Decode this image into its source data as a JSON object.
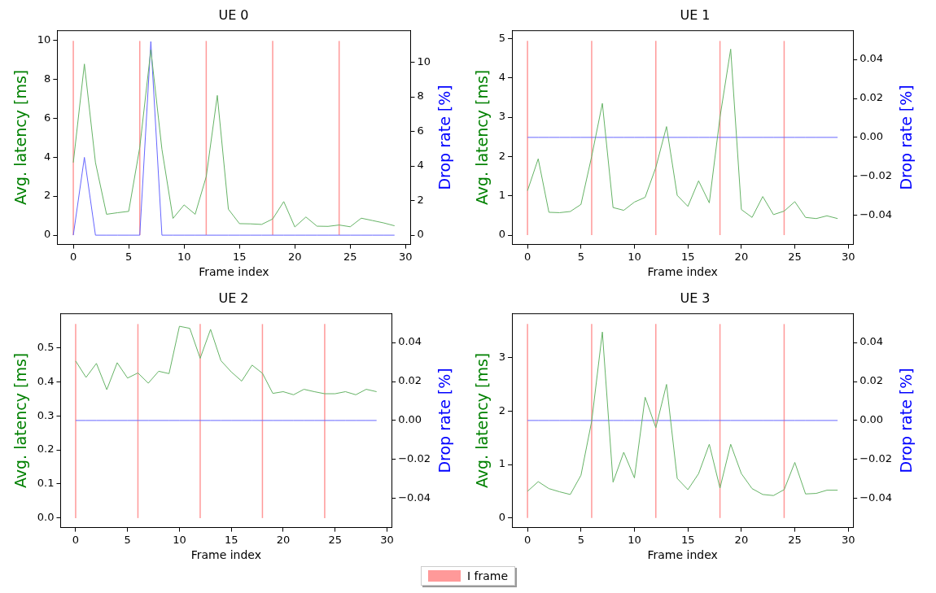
{
  "chart_data": [
    {
      "type": "line",
      "title": "UE 0",
      "xlabel": "Frame index",
      "ylabel": "Avg. latency [ms]",
      "y2label": "Drop rate [%]",
      "x": [
        0,
        1,
        2,
        3,
        4,
        5,
        6,
        7,
        8,
        9,
        10,
        11,
        12,
        13,
        14,
        15,
        16,
        17,
        18,
        19,
        20,
        21,
        22,
        23,
        24,
        25,
        26,
        27,
        28,
        29
      ],
      "xlim": [
        -1.45,
        30.45
      ],
      "xticks": [
        0,
        5,
        10,
        15,
        20,
        25,
        30
      ],
      "ylim": [
        -0.48,
        10.5
      ],
      "yticks": [
        0,
        2,
        4,
        6,
        8,
        10
      ],
      "y2lim": [
        -0.54,
        11.85
      ],
      "y2ticks": [
        0,
        2,
        4,
        6,
        8,
        10
      ],
      "grid": false,
      "legend": "bottom",
      "series": [
        {
          "color": "#66b366",
          "values": [
            3.72,
            8.77,
            3.72,
            1.07,
            1.15,
            1.22,
            4.5,
            9.5,
            4.4,
            0.86,
            1.55,
            1.07,
            3.0,
            7.16,
            1.33,
            0.59,
            0.58,
            0.55,
            0.83,
            1.72,
            0.42,
            0.93,
            0.46,
            0.45,
            0.52,
            0.43,
            0.87,
            0.75,
            0.63,
            0.48
          ]
        },
        {
          "color": "#6666ff",
          "axis": "y2",
          "values": [
            0,
            4.5,
            0,
            0,
            0,
            0,
            0,
            11.2,
            0,
            0,
            0,
            0,
            0,
            0,
            0,
            0,
            0,
            0,
            0,
            0,
            0,
            0,
            0,
            0,
            0,
            0,
            0,
            0,
            0,
            0
          ]
        }
      ],
      "ref_lines": [
        {
          "axis": "x",
          "value": 0,
          "label": "I frame",
          "color": "#ff9999"
        },
        {
          "axis": "x",
          "value": 6,
          "color": "#ff9999"
        },
        {
          "axis": "x",
          "value": 12,
          "color": "#ff9999"
        },
        {
          "axis": "x",
          "value": 18,
          "color": "#ff9999"
        },
        {
          "axis": "x",
          "value": 24,
          "color": "#ff9999"
        }
      ]
    },
    {
      "type": "line",
      "title": "UE 1",
      "xlabel": "Frame index",
      "ylabel": "Avg. latency [ms]",
      "y2label": "Drop rate [%]",
      "x": [
        0,
        1,
        2,
        3,
        4,
        5,
        6,
        7,
        8,
        9,
        10,
        11,
        12,
        13,
        14,
        15,
        16,
        17,
        18,
        19,
        20,
        21,
        22,
        23,
        24,
        25,
        26,
        27,
        28,
        29
      ],
      "xlim": [
        -1.45,
        30.45
      ],
      "xticks": [
        0,
        5,
        10,
        15,
        20,
        25,
        30
      ],
      "ylim": [
        -0.24,
        5.21
      ],
      "yticks": [
        0,
        1,
        2,
        3,
        4,
        5
      ],
      "y2lim": [
        -0.055,
        0.055
      ],
      "y2ticks": [
        {
          "value": -0.04,
          "label": "−0.04"
        },
        {
          "value": -0.02,
          "label": "−0.02"
        },
        {
          "value": 0,
          "label": "0.00"
        },
        0.02,
        0.04
      ],
      "grid": false,
      "series": [
        {
          "color": "#66b366",
          "values": [
            1.13,
            1.94,
            0.58,
            0.57,
            0.6,
            0.78,
            2.0,
            3.35,
            0.7,
            0.63,
            0.84,
            0.96,
            1.72,
            2.76,
            1.01,
            0.73,
            1.38,
            0.82,
            3.0,
            4.73,
            0.65,
            0.45,
            0.98,
            0.52,
            0.61,
            0.85,
            0.45,
            0.42,
            0.49,
            0.42
          ]
        },
        {
          "color": "#6666ff",
          "axis": "y2",
          "values": [
            0,
            0,
            0,
            0,
            0,
            0,
            0,
            0,
            0,
            0,
            0,
            0,
            0,
            0,
            0,
            0,
            0,
            0,
            0,
            0,
            0,
            0,
            0,
            0,
            0,
            0,
            0,
            0,
            0,
            0
          ]
        }
      ],
      "ref_lines": [
        {
          "axis": "x",
          "value": 0,
          "color": "#ff9999"
        },
        {
          "axis": "x",
          "value": 6,
          "color": "#ff9999"
        },
        {
          "axis": "x",
          "value": 12,
          "color": "#ff9999"
        },
        {
          "axis": "x",
          "value": 18,
          "color": "#ff9999"
        },
        {
          "axis": "x",
          "value": 24,
          "color": "#ff9999"
        }
      ]
    },
    {
      "type": "line",
      "title": "UE 2",
      "xlabel": "Frame index",
      "ylabel": "Avg. latency [ms]",
      "y2label": "Drop rate [%]",
      "x": [
        0,
        1,
        2,
        3,
        4,
        5,
        6,
        7,
        8,
        9,
        10,
        11,
        12,
        13,
        14,
        15,
        16,
        17,
        18,
        19,
        20,
        21,
        22,
        23,
        24,
        25,
        26,
        27,
        28,
        29
      ],
      "xlim": [
        -1.45,
        30.45
      ],
      "xticks": [
        0,
        5,
        10,
        15,
        20,
        25,
        30
      ],
      "ylim": [
        -0.028,
        0.601
      ],
      "yticks": [
        {
          "value": 0,
          "label": "0.0"
        },
        0.1,
        0.2,
        0.3,
        0.4,
        0.5
      ],
      "y2lim": [
        -0.055,
        0.055
      ],
      "y2ticks": [
        {
          "value": -0.04,
          "label": "−0.04"
        },
        {
          "value": -0.02,
          "label": "−0.02"
        },
        {
          "value": 0,
          "label": "0.00"
        },
        0.02,
        0.04
      ],
      "grid": false,
      "series": [
        {
          "color": "#66b366",
          "values": [
            0.461,
            0.413,
            0.454,
            0.377,
            0.456,
            0.411,
            0.426,
            0.396,
            0.431,
            0.424,
            0.563,
            0.557,
            0.469,
            0.554,
            0.462,
            0.429,
            0.402,
            0.449,
            0.425,
            0.366,
            0.371,
            0.362,
            0.378,
            0.371,
            0.365,
            0.365,
            0.371,
            0.362,
            0.378,
            0.371
          ]
        },
        {
          "color": "#6666ff",
          "axis": "y2",
          "values": [
            0,
            0,
            0,
            0,
            0,
            0,
            0,
            0,
            0,
            0,
            0,
            0,
            0,
            0,
            0,
            0,
            0,
            0,
            0,
            0,
            0,
            0,
            0,
            0,
            0,
            0,
            0,
            0,
            0,
            0
          ]
        }
      ],
      "ref_lines": [
        {
          "axis": "x",
          "value": 0,
          "color": "#ff9999"
        },
        {
          "axis": "x",
          "value": 6,
          "color": "#ff9999"
        },
        {
          "axis": "x",
          "value": 12,
          "color": "#ff9999"
        },
        {
          "axis": "x",
          "value": 18,
          "color": "#ff9999"
        },
        {
          "axis": "x",
          "value": 24,
          "color": "#ff9999"
        }
      ]
    },
    {
      "type": "line",
      "title": "UE 3",
      "xlabel": "Frame index",
      "ylabel": "Avg. latency [ms]",
      "y2label": "Drop rate [%]",
      "x": [
        0,
        1,
        2,
        3,
        4,
        5,
        6,
        7,
        8,
        9,
        10,
        11,
        12,
        13,
        14,
        15,
        16,
        17,
        18,
        19,
        20,
        21,
        22,
        23,
        24,
        25,
        26,
        27,
        28,
        29
      ],
      "xlim": [
        -1.45,
        30.45
      ],
      "xticks": [
        0,
        5,
        10,
        15,
        20,
        25,
        30
      ],
      "ylim": [
        -0.18,
        3.83
      ],
      "yticks": [
        0,
        1,
        2,
        3
      ],
      "y2lim": [
        -0.055,
        0.055
      ],
      "y2ticks": [
        {
          "value": -0.04,
          "label": "−0.04"
        },
        {
          "value": -0.02,
          "label": "−0.02"
        },
        {
          "value": 0,
          "label": "0.00"
        },
        0.02,
        0.04
      ],
      "grid": false,
      "series": [
        {
          "color": "#66b366",
          "values": [
            0.5,
            0.68,
            0.55,
            0.49,
            0.44,
            0.8,
            1.81,
            3.48,
            0.67,
            1.23,
            0.75,
            2.26,
            1.69,
            2.5,
            0.74,
            0.53,
            0.83,
            1.38,
            0.56,
            1.38,
            0.83,
            0.55,
            0.44,
            0.42,
            0.53,
            1.04,
            0.45,
            0.46,
            0.52,
            0.52
          ]
        },
        {
          "color": "#6666ff",
          "axis": "y2",
          "values": [
            0,
            0,
            0,
            0,
            0,
            0,
            0,
            0,
            0,
            0,
            0,
            0,
            0,
            0,
            0,
            0,
            0,
            0,
            0,
            0,
            0,
            0,
            0,
            0,
            0,
            0,
            0,
            0,
            0,
            0
          ]
        }
      ],
      "ref_lines": [
        {
          "axis": "x",
          "value": 0,
          "color": "#ff9999"
        },
        {
          "axis": "x",
          "value": 6,
          "color": "#ff9999"
        },
        {
          "axis": "x",
          "value": 12,
          "color": "#ff9999"
        },
        {
          "axis": "x",
          "value": 18,
          "color": "#ff9999"
        },
        {
          "axis": "x",
          "value": 24,
          "color": "#ff9999"
        }
      ]
    }
  ]
}
